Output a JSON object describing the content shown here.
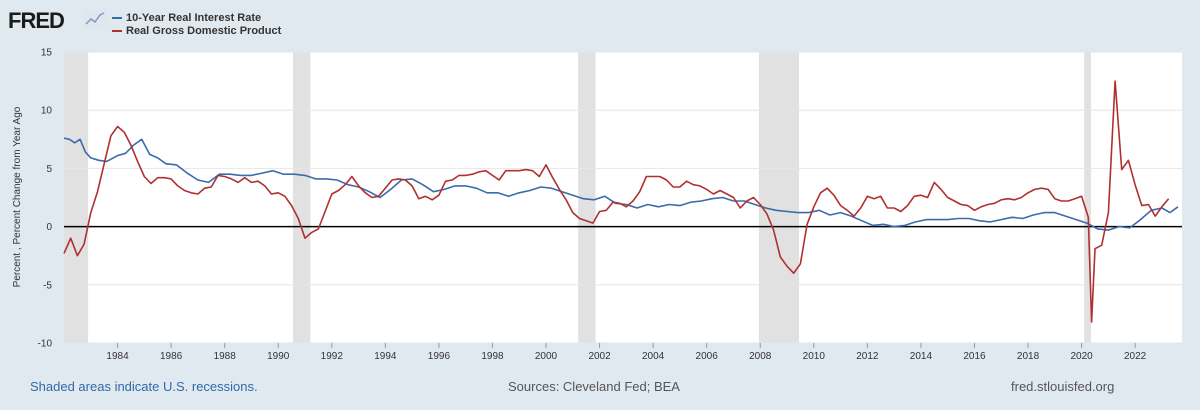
{
  "logo_text": "FRED",
  "colors": {
    "background": "#e1e9f0",
    "plot_bg": "#ffffff",
    "series1": "#3b6baa",
    "series2": "#b03030",
    "recession": "#e1e1e1",
    "zero_line": "#000000",
    "note": "#2f6aa8"
  },
  "footer": {
    "note": "Shaded areas indicate U.S. recessions.",
    "sources": "Sources: Cleveland Fed; BEA",
    "url": "fred.stlouisfed.org"
  },
  "chart_data": {
    "type": "line",
    "ylabel": "Percent , Percent Change from Year Ago",
    "ylim": [
      -10,
      15
    ],
    "yticks": [
      -10,
      -5,
      0,
      5,
      10,
      15
    ],
    "xlim": [
      1982.0,
      2023.75
    ],
    "xticks": [
      1984,
      1986,
      1988,
      1990,
      1992,
      1994,
      1996,
      1998,
      2000,
      2002,
      2004,
      2006,
      2008,
      2010,
      2012,
      2014,
      2016,
      2018,
      2020,
      2022
    ],
    "grid": "horizontal",
    "legend_placement": "top-left",
    "recessions": [
      [
        1982.0,
        1982.9
      ],
      [
        1990.55,
        1991.2
      ],
      [
        2001.2,
        2001.85
      ],
      [
        2007.95,
        2009.45
      ],
      [
        2020.1,
        2020.35
      ]
    ],
    "series": [
      {
        "name": "10-Year Real Interest Rate",
        "color": "#3b6baa",
        "points": [
          [
            1982.0,
            7.6
          ],
          [
            1982.2,
            7.5
          ],
          [
            1982.4,
            7.2
          ],
          [
            1982.6,
            7.5
          ],
          [
            1982.8,
            6.4
          ],
          [
            1983.0,
            5.9
          ],
          [
            1983.3,
            5.7
          ],
          [
            1983.6,
            5.6
          ],
          [
            1984.0,
            6.1
          ],
          [
            1984.3,
            6.3
          ],
          [
            1984.6,
            7.0
          ],
          [
            1984.9,
            7.5
          ],
          [
            1985.2,
            6.2
          ],
          [
            1985.5,
            5.9
          ],
          [
            1985.8,
            5.4
          ],
          [
            1986.2,
            5.3
          ],
          [
            1986.6,
            4.6
          ],
          [
            1987.0,
            4.0
          ],
          [
            1987.4,
            3.8
          ],
          [
            1987.8,
            4.5
          ],
          [
            1988.2,
            4.5
          ],
          [
            1988.6,
            4.4
          ],
          [
            1989.0,
            4.4
          ],
          [
            1989.4,
            4.6
          ],
          [
            1989.8,
            4.8
          ],
          [
            1990.2,
            4.5
          ],
          [
            1990.6,
            4.5
          ],
          [
            1991.0,
            4.4
          ],
          [
            1991.4,
            4.1
          ],
          [
            1991.8,
            4.1
          ],
          [
            1992.2,
            4.0
          ],
          [
            1992.6,
            3.6
          ],
          [
            1993.0,
            3.4
          ],
          [
            1993.4,
            3.0
          ],
          [
            1993.8,
            2.5
          ],
          [
            1994.2,
            3.2
          ],
          [
            1994.6,
            4.0
          ],
          [
            1995.0,
            4.1
          ],
          [
            1995.4,
            3.6
          ],
          [
            1995.8,
            3.0
          ],
          [
            1996.2,
            3.2
          ],
          [
            1996.6,
            3.5
          ],
          [
            1997.0,
            3.5
          ],
          [
            1997.4,
            3.3
          ],
          [
            1997.8,
            2.9
          ],
          [
            1998.2,
            2.9
          ],
          [
            1998.6,
            2.6
          ],
          [
            1999.0,
            2.9
          ],
          [
            1999.4,
            3.1
          ],
          [
            1999.8,
            3.4
          ],
          [
            2000.2,
            3.3
          ],
          [
            2000.6,
            3.0
          ],
          [
            2001.0,
            2.7
          ],
          [
            2001.4,
            2.4
          ],
          [
            2001.8,
            2.3
          ],
          [
            2002.2,
            2.6
          ],
          [
            2002.6,
            2.0
          ],
          [
            2003.0,
            1.9
          ],
          [
            2003.4,
            1.6
          ],
          [
            2003.8,
            1.9
          ],
          [
            2004.2,
            1.7
          ],
          [
            2004.6,
            1.9
          ],
          [
            2005.0,
            1.8
          ],
          [
            2005.4,
            2.1
          ],
          [
            2005.8,
            2.2
          ],
          [
            2006.2,
            2.4
          ],
          [
            2006.6,
            2.5
          ],
          [
            2007.0,
            2.2
          ],
          [
            2007.4,
            2.2
          ],
          [
            2007.8,
            1.9
          ],
          [
            2008.2,
            1.6
          ],
          [
            2008.6,
            1.4
          ],
          [
            2009.0,
            1.3
          ],
          [
            2009.4,
            1.2
          ],
          [
            2009.8,
            1.2
          ],
          [
            2010.2,
            1.4
          ],
          [
            2010.6,
            1.0
          ],
          [
            2011.0,
            1.2
          ],
          [
            2011.4,
            0.9
          ],
          [
            2011.8,
            0.5
          ],
          [
            2012.2,
            0.1
          ],
          [
            2012.6,
            0.2
          ],
          [
            2013.0,
            0.0
          ],
          [
            2013.4,
            0.1
          ],
          [
            2013.8,
            0.4
          ],
          [
            2014.2,
            0.6
          ],
          [
            2014.6,
            0.6
          ],
          [
            2015.0,
            0.6
          ],
          [
            2015.4,
            0.7
          ],
          [
            2015.8,
            0.7
          ],
          [
            2016.2,
            0.5
          ],
          [
            2016.6,
            0.4
          ],
          [
            2017.0,
            0.6
          ],
          [
            2017.4,
            0.8
          ],
          [
            2017.8,
            0.7
          ],
          [
            2018.2,
            1.0
          ],
          [
            2018.6,
            1.2
          ],
          [
            2019.0,
            1.2
          ],
          [
            2019.4,
            0.9
          ],
          [
            2019.8,
            0.6
          ],
          [
            2020.2,
            0.3
          ],
          [
            2020.6,
            -0.2
          ],
          [
            2021.0,
            -0.3
          ],
          [
            2021.4,
            0.0
          ],
          [
            2021.8,
            -0.1
          ],
          [
            2022.2,
            0.6
          ],
          [
            2022.6,
            1.4
          ],
          [
            2023.0,
            1.6
          ],
          [
            2023.3,
            1.2
          ],
          [
            2023.6,
            1.7
          ]
        ]
      },
      {
        "name": "Real Gross Domestic Product",
        "color": "#b03030",
        "points": [
          [
            1982.0,
            -2.3
          ],
          [
            1982.25,
            -1.0
          ],
          [
            1982.5,
            -2.5
          ],
          [
            1982.75,
            -1.5
          ],
          [
            1983.0,
            1.2
          ],
          [
            1983.25,
            3.0
          ],
          [
            1983.5,
            5.4
          ],
          [
            1983.75,
            7.8
          ],
          [
            1984.0,
            8.6
          ],
          [
            1984.25,
            8.1
          ],
          [
            1984.5,
            7.0
          ],
          [
            1984.75,
            5.6
          ],
          [
            1985.0,
            4.3
          ],
          [
            1985.25,
            3.7
          ],
          [
            1985.5,
            4.2
          ],
          [
            1985.75,
            4.2
          ],
          [
            1986.0,
            4.1
          ],
          [
            1986.25,
            3.5
          ],
          [
            1986.5,
            3.1
          ],
          [
            1986.75,
            2.9
          ],
          [
            1987.0,
            2.8
          ],
          [
            1987.25,
            3.3
          ],
          [
            1987.5,
            3.4
          ],
          [
            1987.75,
            4.4
          ],
          [
            1988.0,
            4.3
          ],
          [
            1988.25,
            4.1
          ],
          [
            1988.5,
            3.8
          ],
          [
            1988.75,
            4.2
          ],
          [
            1989.0,
            3.8
          ],
          [
            1989.25,
            3.9
          ],
          [
            1989.5,
            3.5
          ],
          [
            1989.75,
            2.8
          ],
          [
            1990.0,
            2.9
          ],
          [
            1990.25,
            2.6
          ],
          [
            1990.5,
            1.8
          ],
          [
            1990.75,
            0.7
          ],
          [
            1991.0,
            -1.0
          ],
          [
            1991.25,
            -0.5
          ],
          [
            1991.5,
            -0.2
          ],
          [
            1991.75,
            1.3
          ],
          [
            1992.0,
            2.8
          ],
          [
            1992.25,
            3.1
          ],
          [
            1992.5,
            3.6
          ],
          [
            1992.75,
            4.3
          ],
          [
            1993.0,
            3.5
          ],
          [
            1993.25,
            2.9
          ],
          [
            1993.5,
            2.5
          ],
          [
            1993.75,
            2.6
          ],
          [
            1994.0,
            3.3
          ],
          [
            1994.25,
            4.0
          ],
          [
            1994.5,
            4.1
          ],
          [
            1994.75,
            4.0
          ],
          [
            1995.0,
            3.5
          ],
          [
            1995.25,
            2.4
          ],
          [
            1995.5,
            2.6
          ],
          [
            1995.75,
            2.3
          ],
          [
            1996.0,
            2.7
          ],
          [
            1996.25,
            3.9
          ],
          [
            1996.5,
            4.0
          ],
          [
            1996.75,
            4.4
          ],
          [
            1997.0,
            4.4
          ],
          [
            1997.25,
            4.5
          ],
          [
            1997.5,
            4.7
          ],
          [
            1997.75,
            4.8
          ],
          [
            1998.0,
            4.4
          ],
          [
            1998.25,
            4.0
          ],
          [
            1998.5,
            4.8
          ],
          [
            1998.75,
            4.8
          ],
          [
            1999.0,
            4.8
          ],
          [
            1999.25,
            4.9
          ],
          [
            1999.5,
            4.8
          ],
          [
            1999.75,
            4.3
          ],
          [
            2000.0,
            5.3
          ],
          [
            2000.25,
            4.2
          ],
          [
            2000.5,
            3.2
          ],
          [
            2000.75,
            2.3
          ],
          [
            2001.0,
            1.2
          ],
          [
            2001.25,
            0.7
          ],
          [
            2001.5,
            0.5
          ],
          [
            2001.75,
            0.3
          ],
          [
            2002.0,
            1.3
          ],
          [
            2002.25,
            1.4
          ],
          [
            2002.5,
            2.1
          ],
          [
            2002.75,
            2.0
          ],
          [
            2003.0,
            1.7
          ],
          [
            2003.25,
            2.2
          ],
          [
            2003.5,
            3.0
          ],
          [
            2003.75,
            4.3
          ],
          [
            2004.0,
            4.3
          ],
          [
            2004.25,
            4.3
          ],
          [
            2004.5,
            4.0
          ],
          [
            2004.75,
            3.4
          ],
          [
            2005.0,
            3.4
          ],
          [
            2005.25,
            3.9
          ],
          [
            2005.5,
            3.6
          ],
          [
            2005.75,
            3.5
          ],
          [
            2006.0,
            3.2
          ],
          [
            2006.25,
            2.8
          ],
          [
            2006.5,
            3.1
          ],
          [
            2006.75,
            2.8
          ],
          [
            2007.0,
            2.5
          ],
          [
            2007.25,
            1.6
          ],
          [
            2007.5,
            2.2
          ],
          [
            2007.75,
            2.5
          ],
          [
            2008.0,
            1.9
          ],
          [
            2008.25,
            1.1
          ],
          [
            2008.5,
            -0.3
          ],
          [
            2008.75,
            -2.6
          ],
          [
            2009.0,
            -3.4
          ],
          [
            2009.25,
            -4.0
          ],
          [
            2009.5,
            -3.2
          ],
          [
            2009.75,
            0.2
          ],
          [
            2010.0,
            1.7
          ],
          [
            2010.25,
            2.9
          ],
          [
            2010.5,
            3.3
          ],
          [
            2010.75,
            2.7
          ],
          [
            2011.0,
            1.8
          ],
          [
            2011.25,
            1.4
          ],
          [
            2011.5,
            0.9
          ],
          [
            2011.75,
            1.6
          ],
          [
            2012.0,
            2.6
          ],
          [
            2012.25,
            2.4
          ],
          [
            2012.5,
            2.6
          ],
          [
            2012.75,
            1.6
          ],
          [
            2013.0,
            1.6
          ],
          [
            2013.25,
            1.3
          ],
          [
            2013.5,
            1.8
          ],
          [
            2013.75,
            2.6
          ],
          [
            2014.0,
            2.7
          ],
          [
            2014.25,
            2.5
          ],
          [
            2014.5,
            3.8
          ],
          [
            2014.75,
            3.2
          ],
          [
            2015.0,
            2.5
          ],
          [
            2015.25,
            2.2
          ],
          [
            2015.5,
            1.9
          ],
          [
            2015.75,
            1.8
          ],
          [
            2016.0,
            1.4
          ],
          [
            2016.25,
            1.7
          ],
          [
            2016.5,
            1.9
          ],
          [
            2016.75,
            2.0
          ],
          [
            2017.0,
            2.3
          ],
          [
            2017.25,
            2.4
          ],
          [
            2017.5,
            2.3
          ],
          [
            2017.75,
            2.5
          ],
          [
            2018.0,
            2.9
          ],
          [
            2018.25,
            3.2
          ],
          [
            2018.5,
            3.3
          ],
          [
            2018.75,
            3.2
          ],
          [
            2019.0,
            2.4
          ],
          [
            2019.25,
            2.2
          ],
          [
            2019.5,
            2.2
          ],
          [
            2019.75,
            2.4
          ],
          [
            2020.0,
            2.6
          ],
          [
            2020.25,
            0.8
          ],
          [
            2020.375,
            -8.2
          ],
          [
            2020.5,
            -1.9
          ],
          [
            2020.75,
            -1.6
          ],
          [
            2021.0,
            1.2
          ],
          [
            2021.25,
            12.5
          ],
          [
            2021.5,
            4.9
          ],
          [
            2021.75,
            5.7
          ],
          [
            2022.0,
            3.6
          ],
          [
            2022.25,
            1.8
          ],
          [
            2022.5,
            1.9
          ],
          [
            2022.75,
            0.9
          ],
          [
            2023.0,
            1.7
          ],
          [
            2023.25,
            2.4
          ]
        ]
      }
    ]
  }
}
